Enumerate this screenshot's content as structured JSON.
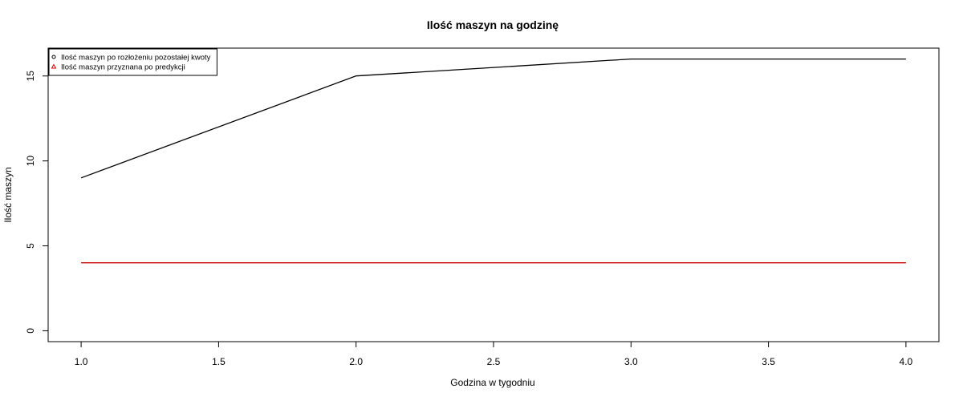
{
  "chart_data": {
    "type": "line",
    "title": "Ilość maszyn na godzinę",
    "xlabel": "Godzina w tygodniu",
    "ylabel": "Ilość maszyn",
    "xlim": [
      0.88,
      4.12
    ],
    "ylim": [
      -0.64,
      16.64
    ],
    "x_ticks": [
      1.0,
      1.5,
      2.0,
      2.5,
      3.0,
      3.5,
      4.0
    ],
    "x_tick_labels": [
      "1.0",
      "1.5",
      "2.0",
      "2.5",
      "3.0",
      "3.5",
      "4.0"
    ],
    "y_ticks": [
      0,
      5,
      10,
      15
    ],
    "y_tick_labels": [
      "0",
      "5",
      "10",
      "15"
    ],
    "grid": false,
    "legend_position": "top-left",
    "series": [
      {
        "name": "Ilość maszyn po rozłożeniu pozostałej kwoty",
        "color": "#000000",
        "marker": "circle",
        "x": [
          1,
          2,
          3,
          4
        ],
        "y": [
          9,
          15,
          16,
          16
        ]
      },
      {
        "name": "Ilość maszyn przyznana po predykcji",
        "color": "#cc0000",
        "marker": "triangle",
        "x": [
          1,
          2,
          3,
          4
        ],
        "y": [
          4,
          4,
          4,
          4
        ]
      }
    ]
  }
}
